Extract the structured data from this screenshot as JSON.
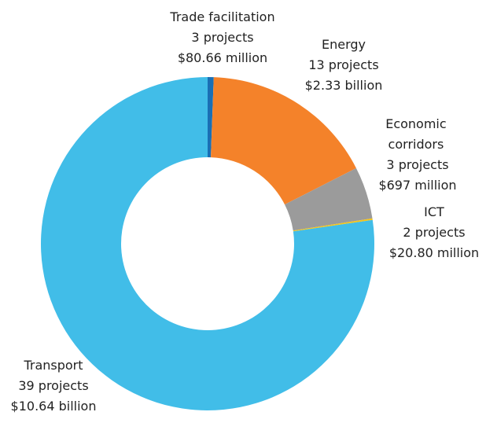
{
  "chart_data": {
    "type": "donut",
    "categories": [
      "Trade facilitation",
      "Energy",
      "Economic corridors",
      "ICT",
      "Transport"
    ],
    "project_labels": [
      "3 projects",
      "13 projects",
      "3 projects",
      "2 projects",
      "39 projects"
    ],
    "values": [
      80.66,
      2330,
      697,
      20.8,
      10640
    ],
    "value_labels": [
      "$80.66 million",
      "$2.33 billion",
      "$697 million",
      "$20.80 million",
      "$10.64 billion"
    ],
    "colors": [
      "#1a6fb5",
      "#f4822a",
      "#9b9b9b",
      "#f5c518",
      "#41bde8"
    ]
  }
}
